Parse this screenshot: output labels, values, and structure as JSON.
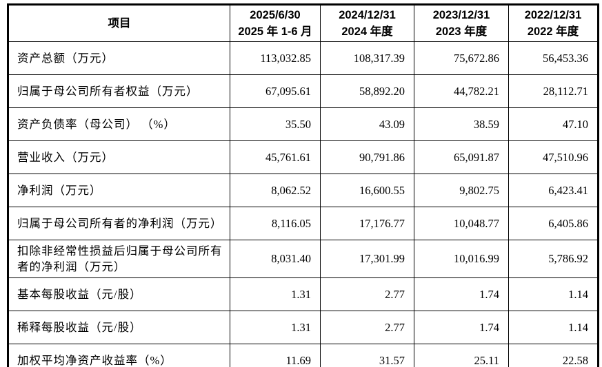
{
  "table": {
    "header": {
      "item_label": "项目",
      "periods": [
        {
          "line1": "2025/6/30",
          "line2": "2025 年 1-6 月"
        },
        {
          "line1": "2024/12/31",
          "line2": "2024 年度"
        },
        {
          "line1": "2023/12/31",
          "line2": "2023 年度"
        },
        {
          "line1": "2022/12/31",
          "line2": "2022 年度"
        }
      ]
    },
    "rows": [
      {
        "label": "资产总额（万元）",
        "values": [
          "113,032.85",
          "108,317.39",
          "75,672.86",
          "56,453.36"
        ]
      },
      {
        "label": "归属于母公司所有者权益（万元）",
        "values": [
          "67,095.61",
          "58,892.20",
          "44,782.21",
          "28,112.71"
        ]
      },
      {
        "label": "资产负债率（母公司） （%）",
        "values": [
          "35.50",
          "43.09",
          "38.59",
          "47.10"
        ]
      },
      {
        "label": "营业收入（万元）",
        "values": [
          "45,761.61",
          "90,791.86",
          "65,091.87",
          "47,510.96"
        ]
      },
      {
        "label": "净利润（万元）",
        "values": [
          "8,062.52",
          "16,600.55",
          "9,802.75",
          "6,423.41"
        ]
      },
      {
        "label": "归属于母公司所有者的净利润（万元）",
        "values": [
          "8,116.05",
          "17,176.77",
          "10,048.77",
          "6,405.86"
        ]
      },
      {
        "label": "扣除非经常性损益后归属于母公司所有者的净利润（万元）",
        "values": [
          "8,031.40",
          "17,301.99",
          "10,016.99",
          "5,786.92"
        ]
      },
      {
        "label": "基本每股收益（元/股）",
        "values": [
          "1.31",
          "2.77",
          "1.74",
          "1.14"
        ]
      },
      {
        "label": "稀释每股收益（元/股）",
        "values": [
          "1.31",
          "2.77",
          "1.74",
          "1.14"
        ]
      },
      {
        "label": "加权平均净资产收益率（%）",
        "values": [
          "11.69",
          "31.57",
          "25.11",
          "22.58"
        ]
      }
    ]
  },
  "colors": {
    "border": "#000000",
    "text": "#000000",
    "background": "#ffffff"
  }
}
